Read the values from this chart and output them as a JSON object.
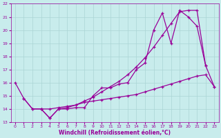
{
  "xlabel": "Windchill (Refroidissement éolien,°C)",
  "background_color": "#c8ecec",
  "grid_color": "#aad4d4",
  "line_color": "#990099",
  "ylim": [
    13,
    22
  ],
  "xlim": [
    -0.5,
    23.5
  ],
  "yticks": [
    13,
    14,
    15,
    16,
    17,
    18,
    19,
    20,
    21,
    22
  ],
  "xticks": [
    0,
    1,
    2,
    3,
    4,
    5,
    6,
    7,
    8,
    9,
    10,
    11,
    12,
    13,
    14,
    15,
    16,
    17,
    18,
    19,
    20,
    21,
    22,
    23
  ],
  "line1_x": [
    0,
    1,
    2,
    3,
    4,
    5,
    6,
    7,
    8,
    9,
    10,
    11,
    12,
    13,
    14,
    15,
    16,
    17,
    18,
    19,
    20,
    21,
    22,
    23
  ],
  "line1_y": [
    16.0,
    14.8,
    14.0,
    14.0,
    13.3,
    14.0,
    14.0,
    14.1,
    14.1,
    15.0,
    15.6,
    15.6,
    15.9,
    16.0,
    17.0,
    17.5,
    20.0,
    21.3,
    19.0,
    21.5,
    21.0,
    20.3,
    17.3,
    15.7
  ],
  "line2_x": [
    1,
    2,
    3,
    4,
    5,
    6,
    7,
    8,
    9,
    10,
    11,
    12,
    13,
    14,
    15,
    16,
    17,
    18,
    19,
    20,
    21,
    22,
    23
  ],
  "line2_y": [
    14.8,
    14.0,
    14.0,
    14.0,
    14.1,
    14.2,
    14.3,
    14.5,
    14.6,
    14.7,
    14.8,
    14.9,
    15.0,
    15.1,
    15.3,
    15.5,
    15.7,
    15.9,
    16.1,
    16.3,
    16.5,
    16.6,
    15.7
  ],
  "line3_x": [
    3,
    4,
    5,
    6,
    7,
    8,
    9,
    10,
    11,
    12,
    13,
    14,
    15,
    16,
    17,
    18,
    19,
    20,
    21,
    22
  ],
  "line3_y": [
    14.0,
    13.3,
    14.0,
    14.1,
    14.3,
    14.6,
    14.9,
    15.3,
    15.7,
    16.1,
    16.6,
    17.2,
    17.9,
    18.7,
    19.6,
    20.5,
    21.4,
    21.5,
    21.5,
    17.3
  ]
}
